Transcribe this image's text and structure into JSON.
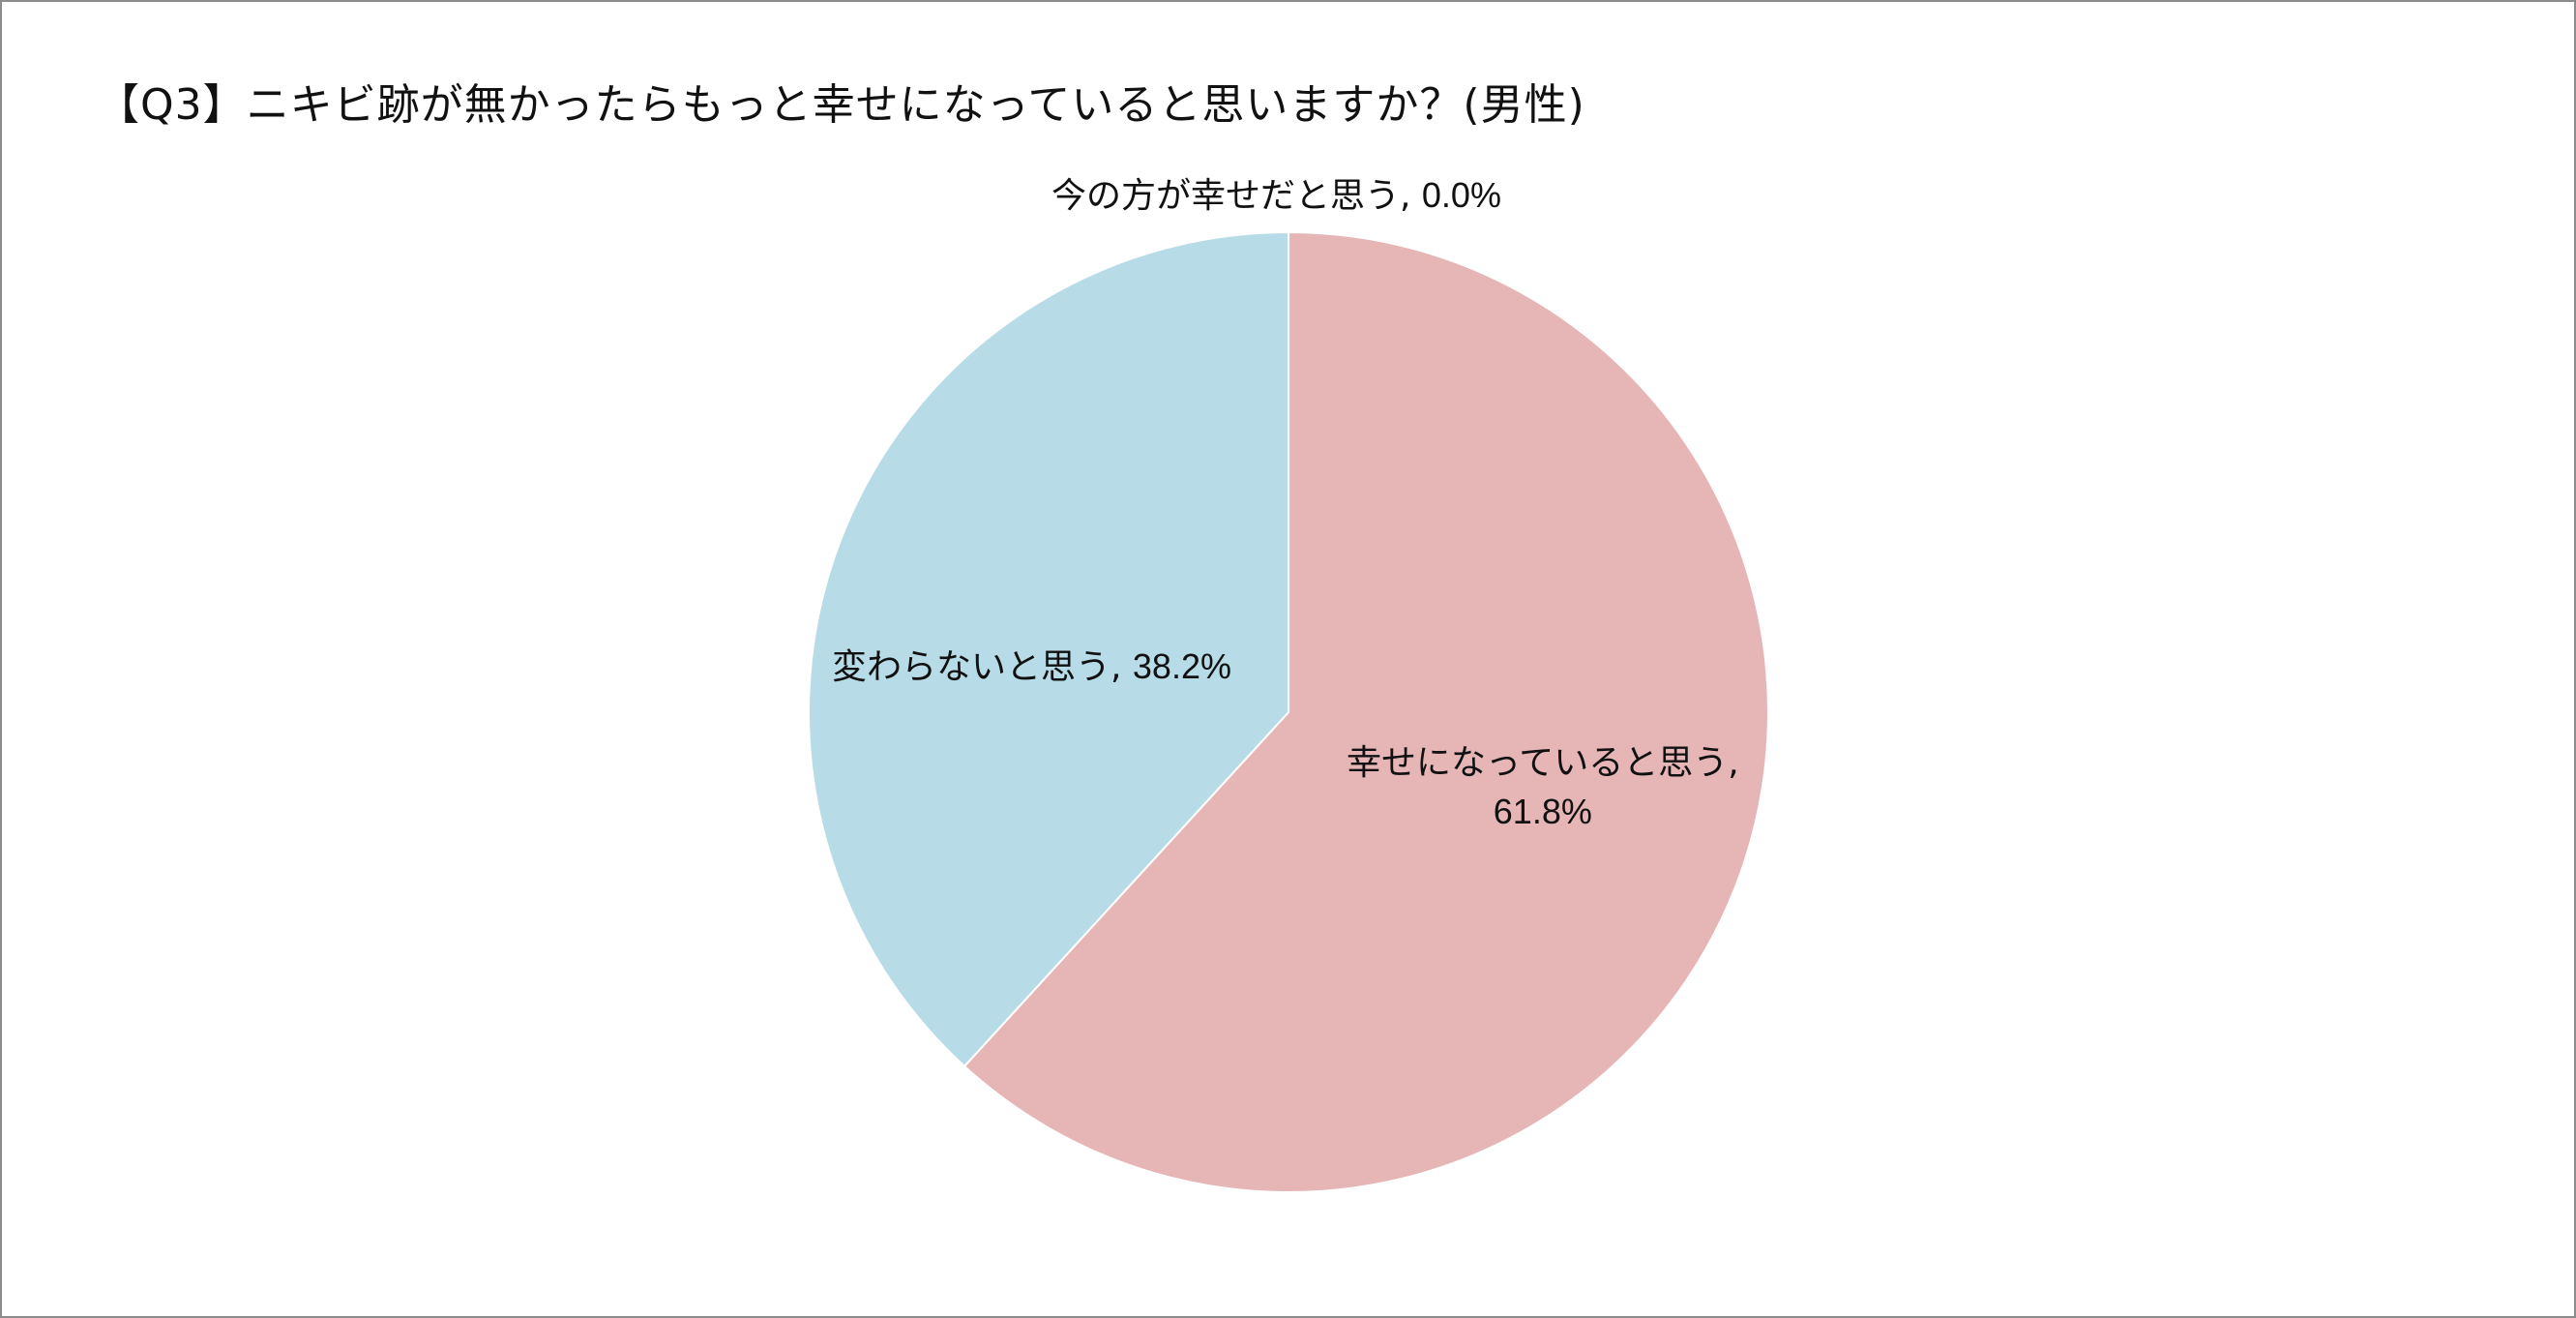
{
  "title": "【Q3】ニキビ跡が無かったらもっと幸せになっていると思いますか？(男性)",
  "chart_data": {
    "type": "pie",
    "title": "【Q3】ニキビ跡が無かったらもっと幸せになっていると思いますか？(男性)",
    "slices": [
      {
        "label": "今の方が幸せだと思う",
        "value": 0.0,
        "display": "0.0%",
        "color": "#c9d9a5"
      },
      {
        "label": "幸せになっていると思う",
        "value": 61.8,
        "display": "61.8%",
        "color": "#e6b6b6"
      },
      {
        "label": "変わらないと思う",
        "value": 38.2,
        "display": "38.2%",
        "color": "#b7dce7"
      }
    ],
    "legend": "none",
    "data_labels": "category name, percentage"
  }
}
